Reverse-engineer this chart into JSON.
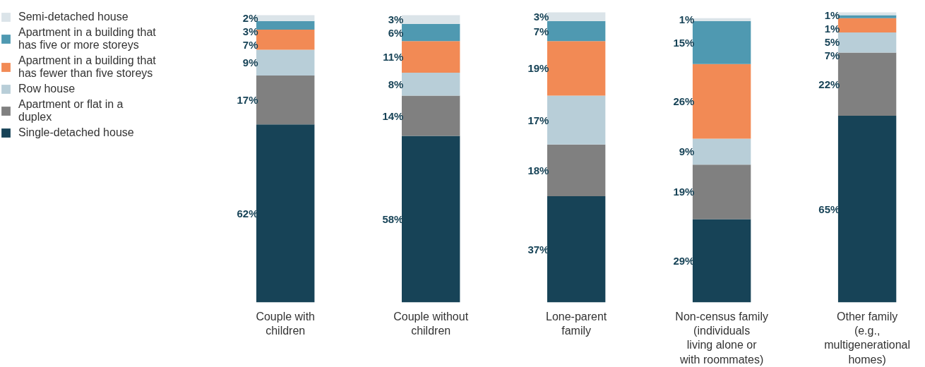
{
  "chart_data": {
    "type": "bar",
    "stacked": true,
    "legend": "left",
    "grid": false,
    "categories": [
      "Couple with children",
      "Couple without children",
      "Lone-parent family",
      "Non-census family (individuals living alone or with roommates)",
      "Other family (e.g., multigenerational homes)"
    ],
    "series": [
      {
        "name": "Single-detached house",
        "color": "#174357",
        "values": [
          62,
          58,
          37,
          29,
          65
        ],
        "value_labels": [
          "62%",
          "58%",
          "37%",
          "29%",
          "65%"
        ]
      },
      {
        "name": "Apartment or flat in a duplex",
        "color": "#808080",
        "values": [
          17,
          14,
          18,
          19,
          22
        ],
        "value_labels": [
          "17%",
          "14%",
          "18%",
          "19%",
          "22%"
        ]
      },
      {
        "name": "Row house",
        "color": "#b8ced8",
        "values": [
          9,
          8,
          17,
          9,
          7
        ],
        "value_labels": [
          "9%",
          "8%",
          "17%",
          "9%",
          "7%"
        ]
      },
      {
        "name": "Apartment in a building that has fewer than five storeys",
        "color": "#f28a55",
        "values": [
          7,
          11,
          19,
          26,
          5
        ],
        "value_labels": [
          "7%",
          "11%",
          "19%",
          "26%",
          "5%"
        ]
      },
      {
        "name": "Apartment in a building that has five or more storeys",
        "color": "#4f99b1",
        "values": [
          3,
          6,
          7,
          15,
          1
        ],
        "value_labels": [
          "3%",
          "6%",
          "7%",
          "15%",
          "1%"
        ]
      },
      {
        "name": "Semi-detached house",
        "color": "#dbe4e9",
        "values": [
          2,
          3,
          3,
          1,
          1
        ],
        "value_labels": [
          "2%",
          "3%",
          "3%",
          "1%",
          "1%"
        ]
      }
    ]
  }
}
